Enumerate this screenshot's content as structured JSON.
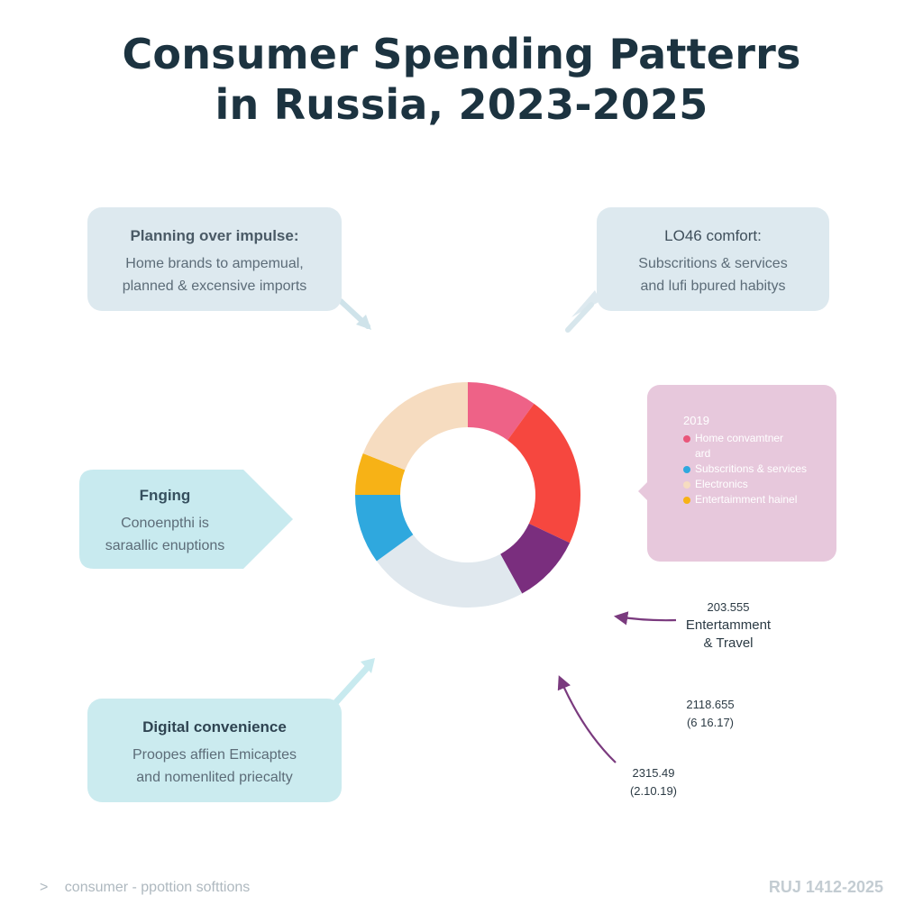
{
  "title": {
    "line1": "Consumer Spending Patterrs",
    "line2": "in Russia, 2023-2025"
  },
  "callouts": {
    "planning": {
      "heading": "Planning over impulse:",
      "line1": "Home brands to ampemual,",
      "line2": "planned & excensive imports"
    },
    "comfort": {
      "heading": "LO46 comfort:",
      "line1": "Subscritions & services",
      "line2": "and lufi bpured habitys"
    },
    "frugal": {
      "heading": "Fngіng",
      "line1": "Conoenpthi is",
      "line2": "saraallic enuptions"
    },
    "digital": {
      "heading": "Digital convenience",
      "line1": "Proopes affien Emicaptes",
      "line2": "and nomenlited priecalty"
    }
  },
  "legend": {
    "year": "2019",
    "items": [
      {
        "label": "Home convamtner",
        "label2": "ard",
        "color": "#e9567a"
      },
      {
        "label": "Subscritions & services",
        "color": "#2fa8de"
      },
      {
        "label": "Electronics",
        "color": "#f6dcc0"
      },
      {
        "label": "Entertaimment hainel",
        "color": "#f7b216"
      }
    ]
  },
  "annotations": {
    "a1": {
      "value": "203.555",
      "line1": "Entertamment",
      "line2": "& Travel"
    },
    "a2": {
      "value": "2118.655",
      "line2": "(6 16.17)"
    },
    "a3": {
      "value": "2315.49",
      "line2": "(2.10.19)"
    }
  },
  "footer": {
    "left": "consumer - ppottion softtions",
    "left_icon": ">",
    "right": "RUJ 1412-2025"
  },
  "chart_data": {
    "type": "pie",
    "variant": "donut",
    "title": "",
    "slices": [
      {
        "value": 10,
        "color": "#ee6287"
      },
      {
        "value": 22,
        "color": "#f6473f"
      },
      {
        "value": 10,
        "color": "#7a2e7e"
      },
      {
        "value": 23,
        "color": "#e0e8ee"
      },
      {
        "value": 10,
        "color": "#2fa8de"
      },
      {
        "value": 6,
        "color": "#f7b216"
      },
      {
        "value": 19,
        "color": "#f6dcc0"
      }
    ],
    "legend_position": "right"
  }
}
